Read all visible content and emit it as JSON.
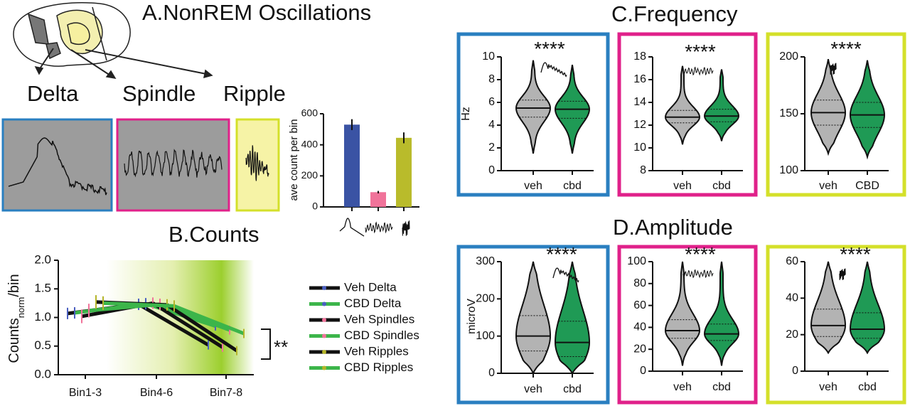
{
  "figure": {
    "title_a": "A.NonREM Oscillations",
    "trace_labels": [
      "Delta",
      "Spindle",
      "Ripple"
    ],
    "title_c": "C.Frequency",
    "title_d": "D.Amplitude"
  },
  "chart_data": [
    {
      "type": "bar",
      "categories": [
        null,
        null,
        null
      ],
      "values": [
        530,
        95,
        445
      ],
      "errors": [
        35,
        8,
        35
      ],
      "colors": [
        "#3a53a4",
        "#f0739a",
        "#b9bb2b"
      ],
      "ylabel": "ave count per bin",
      "ylim": [
        0,
        600
      ],
      "yticks": [
        0,
        200,
        400,
        600
      ]
    },
    {
      "type": "line",
      "title": "B.Counts",
      "categories": [
        "Bin1-3",
        "Bin4-6",
        "Bin7-8"
      ],
      "ylabel": "Counts",
      "ylabel_sub": "norm",
      "ylabel_suffix": "/bin",
      "ylim": [
        0,
        2
      ],
      "yticks": [
        {
          "value": 0,
          "label": "0.0"
        },
        0.5,
        {
          "value": 1,
          "label": "1.0"
        },
        1.5,
        {
          "value": 2,
          "label": "2.0"
        }
      ],
      "annotation": "**",
      "legend": "right",
      "series": [
        {
          "name": "Veh Delta",
          "color": "#111111",
          "marker_color": "#4a5fc1",
          "values": [
            1.07,
            1.23,
            0.52
          ],
          "errors": [
            0.1,
            0.1,
            0.08
          ]
        },
        {
          "name": "CBD Delta",
          "color": "#3cb54a",
          "marker_color": "#4a5fc1",
          "values": [
            1.08,
            1.24,
            0.85
          ],
          "errors": [
            0.1,
            0.1,
            0.08
          ]
        },
        {
          "name": "Veh Spindles",
          "color": "#111111",
          "marker_color": "#f0739a",
          "values": [
            1.02,
            1.25,
            0.48
          ],
          "errors": [
            0.12,
            0.1,
            0.08
          ]
        },
        {
          "name": "CBD Spindles",
          "color": "#3cb54a",
          "marker_color": "#f0739a",
          "values": [
            1.12,
            1.23,
            0.78
          ],
          "errors": [
            0.12,
            0.1,
            0.08
          ]
        },
        {
          "name": "Veh Ripples",
          "color": "#111111",
          "marker_color": "#b5b52a",
          "values": [
            1.27,
            1.22,
            0.42
          ],
          "errors": [
            0.12,
            0.1,
            0.08
          ]
        },
        {
          "name": "CBD Ripples",
          "color": "#3cb54a",
          "marker_color": "#b5b52a",
          "values": [
            1.25,
            1.2,
            0.72
          ],
          "errors": [
            0.12,
            0.1,
            0.08
          ]
        }
      ]
    },
    {
      "type": "violin",
      "categories": [
        "veh",
        "cbd"
      ],
      "colors": [
        "#b3b3b3",
        "#1f9a55"
      ],
      "frame_color": "#2a7fc0",
      "ylabel": "Hz",
      "annotation": "****",
      "ylim": [
        0,
        10
      ],
      "yticks": [
        0,
        2,
        4,
        6,
        8,
        10
      ],
      "medians": [
        5.5,
        5.4
      ],
      "q1": [
        4.7,
        4.6
      ],
      "q3": [
        6.2,
        6.1
      ],
      "min": [
        1.5,
        1.5
      ],
      "max": [
        9.7,
        9.3
      ]
    },
    {
      "type": "violin",
      "categories": [
        "veh",
        "cbd"
      ],
      "colors": [
        "#b3b3b3",
        "#1f9a55"
      ],
      "frame_color": "#e0218a",
      "annotation": "****",
      "ylim": [
        8,
        18
      ],
      "yticks": [
        8,
        10,
        12,
        14,
        16,
        18
      ],
      "medians": [
        12.7,
        12.8
      ],
      "q1": [
        12.2,
        12.3
      ],
      "q3": [
        13.3,
        13.4
      ],
      "min": [
        10.3,
        10.6
      ],
      "max": [
        17.2,
        16.9
      ]
    },
    {
      "type": "violin",
      "categories": [
        "veh",
        "CBD"
      ],
      "colors": [
        "#b3b3b3",
        "#1f9a55"
      ],
      "frame_color": "#d4e02a",
      "annotation": "****",
      "ylim": [
        100,
        200
      ],
      "yticks": [
        100,
        150,
        200
      ],
      "medians": [
        151,
        149
      ],
      "q1": [
        140,
        138
      ],
      "q3": [
        162,
        160
      ],
      "min": [
        115,
        112
      ],
      "max": [
        198,
        197
      ]
    },
    {
      "type": "violin",
      "categories": [
        "veh",
        "cbd"
      ],
      "colors": [
        "#b3b3b3",
        "#1f9a55"
      ],
      "frame_color": "#2a7fc0",
      "ylabel": "microV",
      "annotation": "****",
      "ylim": [
        0,
        300
      ],
      "yticks": [
        0,
        100,
        200,
        300
      ],
      "medians": [
        100,
        83
      ],
      "q1": [
        60,
        45
      ],
      "q3": [
        155,
        140
      ],
      "min": [
        0,
        0
      ],
      "max": [
        300,
        300
      ]
    },
    {
      "type": "violin",
      "categories": [
        "veh",
        "cbd"
      ],
      "colors": [
        "#b3b3b3",
        "#1f9a55"
      ],
      "frame_color": "#e0218a",
      "annotation": "****",
      "ylim": [
        0,
        100
      ],
      "yticks": [
        0,
        20,
        40,
        60,
        80,
        100
      ],
      "medians": [
        37,
        34
      ],
      "q1": [
        30,
        28
      ],
      "q3": [
        47,
        43
      ],
      "min": [
        5,
        5
      ],
      "max": [
        100,
        100
      ]
    },
    {
      "type": "violin",
      "categories": [
        "veh",
        "cbd"
      ],
      "colors": [
        "#b3b3b3",
        "#1f9a55"
      ],
      "frame_color": "#d4e02a",
      "annotation": "****",
      "ylim": [
        0,
        60
      ],
      "yticks": [
        0,
        20,
        40,
        60
      ],
      "medians": [
        25,
        23
      ],
      "q1": [
        19,
        18
      ],
      "q3": [
        34,
        32
      ],
      "min": [
        10,
        10
      ],
      "max": [
        60,
        60
      ]
    }
  ]
}
